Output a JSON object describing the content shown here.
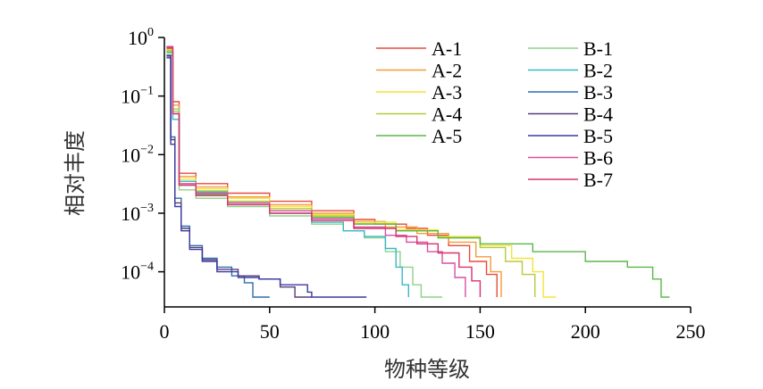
{
  "chart_data": {
    "type": "line",
    "xlabel": "物种等级",
    "ylabel": "相对丰度",
    "xlim": [
      0,
      250
    ],
    "ylim_log10": [
      -4.6,
      0
    ],
    "y_scale": "log",
    "grid": false,
    "legend_position": "top-right",
    "x_ticks": [
      "0",
      "50",
      "100",
      "150",
      "200",
      "250"
    ],
    "y_ticks": [
      {
        "base": "10",
        "exp": "0"
      },
      {
        "base": "10",
        "exp": "−1"
      },
      {
        "base": "10",
        "exp": "−2"
      },
      {
        "base": "10",
        "exp": "−3"
      },
      {
        "base": "10",
        "exp": "−4"
      }
    ],
    "series": [
      {
        "name": "A-1",
        "color": "#e84a3c",
        "end_rank": 158,
        "points": [
          [
            1,
            0.65
          ],
          [
            4,
            0.08
          ],
          [
            7,
            0.0048
          ],
          [
            15,
            0.0032
          ],
          [
            30,
            0.0022
          ],
          [
            50,
            0.0016
          ],
          [
            70,
            0.0011
          ],
          [
            90,
            0.00078
          ],
          [
            100,
            0.00065
          ],
          [
            115,
            0.00055
          ],
          [
            125,
            0.00042
          ],
          [
            135,
            0.00028
          ],
          [
            145,
            0.00015
          ],
          [
            153,
            9e-05
          ],
          [
            158,
            3.7e-05
          ]
        ]
      },
      {
        "name": "A-2",
        "color": "#f39c3a",
        "end_rank": 160,
        "points": [
          [
            1,
            0.6
          ],
          [
            4,
            0.07
          ],
          [
            7,
            0.0042
          ],
          [
            15,
            0.0028
          ],
          [
            30,
            0.0019
          ],
          [
            50,
            0.0014
          ],
          [
            70,
            0.001
          ],
          [
            90,
            0.00072
          ],
          [
            105,
            0.00058
          ],
          [
            120,
            0.00045
          ],
          [
            135,
            0.00032
          ],
          [
            148,
            0.00018
          ],
          [
            155,
            0.0001
          ],
          [
            160,
            3.7e-05
          ]
        ]
      },
      {
        "name": "A-3",
        "color": "#f5e33a",
        "end_rank": 186,
        "points": [
          [
            1,
            0.62
          ],
          [
            4,
            0.06
          ],
          [
            7,
            0.0038
          ],
          [
            15,
            0.0026
          ],
          [
            30,
            0.0018
          ],
          [
            50,
            0.0013
          ],
          [
            70,
            0.00095
          ],
          [
            90,
            0.0007
          ],
          [
            110,
            0.00052
          ],
          [
            130,
            0.0004
          ],
          [
            150,
            0.00028
          ],
          [
            165,
            0.00017
          ],
          [
            175,
            0.0001
          ],
          [
            180,
            3.7e-05
          ],
          [
            186,
            3.7e-05
          ]
        ]
      },
      {
        "name": "A-4",
        "color": "#b5cc3a",
        "end_rank": 176,
        "points": [
          [
            1,
            0.58
          ],
          [
            4,
            0.055
          ],
          [
            7,
            0.0035
          ],
          [
            15,
            0.0024
          ],
          [
            30,
            0.0016
          ],
          [
            50,
            0.0012
          ],
          [
            70,
            0.0009
          ],
          [
            90,
            0.00066
          ],
          [
            110,
            0.0005
          ],
          [
            130,
            0.00038
          ],
          [
            150,
            0.00026
          ],
          [
            162,
            0.00015
          ],
          [
            170,
            9e-05
          ],
          [
            176,
            3.7e-05
          ]
        ]
      },
      {
        "name": "A-5",
        "color": "#5ab84a",
        "end_rank": 240,
        "points": [
          [
            1,
            0.55
          ],
          [
            4,
            0.05
          ],
          [
            7,
            0.003
          ],
          [
            15,
            0.0021
          ],
          [
            30,
            0.0015
          ],
          [
            50,
            0.0011
          ],
          [
            70,
            0.00085
          ],
          [
            90,
            0.00065
          ],
          [
            110,
            0.0005
          ],
          [
            130,
            0.00038
          ],
          [
            150,
            0.0003
          ],
          [
            175,
            0.00022
          ],
          [
            200,
            0.00015
          ],
          [
            220,
            0.00012
          ],
          [
            232,
            7.5e-05
          ],
          [
            236,
            3.7e-05
          ],
          [
            240,
            3.7e-05
          ]
        ]
      },
      {
        "name": "B-1",
        "color": "#8fd18a",
        "end_rank": 132,
        "points": [
          [
            1,
            0.6
          ],
          [
            4,
            0.06
          ],
          [
            7,
            0.0025
          ],
          [
            15,
            0.0018
          ],
          [
            30,
            0.0013
          ],
          [
            50,
            0.0009
          ],
          [
            70,
            0.00065
          ],
          [
            85,
            0.0005
          ],
          [
            95,
            0.00038
          ],
          [
            105,
            0.00022
          ],
          [
            112,
            0.00012
          ],
          [
            118,
            6e-05
          ],
          [
            122,
            3.7e-05
          ],
          [
            132,
            3.7e-05
          ]
        ]
      },
      {
        "name": "B-2",
        "color": "#38b8c8",
        "end_rank": 116,
        "points": [
          [
            1,
            0.5
          ],
          [
            4,
            0.04
          ],
          [
            7,
            0.0035
          ],
          [
            15,
            0.0023
          ],
          [
            30,
            0.0015
          ],
          [
            50,
            0.001
          ],
          [
            70,
            0.0007
          ],
          [
            85,
            0.0005
          ],
          [
            95,
            0.0004
          ],
          [
            105,
            0.00025
          ],
          [
            110,
            0.00012
          ],
          [
            113,
            6e-05
          ],
          [
            116,
            3.7e-05
          ]
        ]
      },
      {
        "name": "B-3",
        "color": "#2f6fae",
        "end_rank": 50,
        "points": [
          [
            1,
            0.5
          ],
          [
            3,
            0.02
          ],
          [
            5,
            0.0018
          ],
          [
            8,
            0.0006
          ],
          [
            12,
            0.00028
          ],
          [
            18,
            0.00017
          ],
          [
            25,
            0.00012
          ],
          [
            32,
            8.5e-05
          ],
          [
            38,
            6.5e-05
          ],
          [
            42,
            3.7e-05
          ],
          [
            50,
            3.7e-05
          ]
        ]
      },
      {
        "name": "B-4",
        "color": "#5a3c7a",
        "end_rank": 70,
        "points": [
          [
            1,
            0.48
          ],
          [
            3,
            0.018
          ],
          [
            5,
            0.0015
          ],
          [
            8,
            0.00055
          ],
          [
            12,
            0.00026
          ],
          [
            18,
            0.00016
          ],
          [
            25,
            0.00011
          ],
          [
            35,
            8.5e-05
          ],
          [
            45,
            7.5e-05
          ],
          [
            55,
            5.5e-05
          ],
          [
            62,
            3.7e-05
          ],
          [
            70,
            3.7e-05
          ]
        ]
      },
      {
        "name": "B-5",
        "color": "#3a3aa0",
        "end_rank": 96,
        "points": [
          [
            1,
            0.45
          ],
          [
            3,
            0.015
          ],
          [
            5,
            0.0013
          ],
          [
            8,
            0.0005
          ],
          [
            12,
            0.00024
          ],
          [
            18,
            0.00015
          ],
          [
            25,
            0.0001
          ],
          [
            35,
            8e-05
          ],
          [
            45,
            7.5e-05
          ],
          [
            55,
            6e-05
          ],
          [
            62,
            6e-05
          ],
          [
            68,
            4.5e-05
          ],
          [
            70,
            3.7e-05
          ],
          [
            96,
            3.7e-05
          ]
        ]
      },
      {
        "name": "B-6",
        "color": "#d94fa0",
        "end_rank": 143,
        "points": [
          [
            1,
            0.7
          ],
          [
            4,
            0.05
          ],
          [
            7,
            0.0032
          ],
          [
            15,
            0.0022
          ],
          [
            30,
            0.0015
          ],
          [
            50,
            0.0011
          ],
          [
            70,
            0.0008
          ],
          [
            90,
            0.00058
          ],
          [
            105,
            0.00042
          ],
          [
            115,
            0.00032
          ],
          [
            125,
            0.00022
          ],
          [
            132,
            0.00014
          ],
          [
            138,
            8e-05
          ],
          [
            143,
            3.7e-05
          ]
        ]
      },
      {
        "name": "B-7",
        "color": "#d6356e",
        "end_rank": 150,
        "points": [
          [
            1,
            0.68
          ],
          [
            4,
            0.05
          ],
          [
            7,
            0.003
          ],
          [
            15,
            0.002
          ],
          [
            30,
            0.0014
          ],
          [
            50,
            0.001
          ],
          [
            70,
            0.00075
          ],
          [
            90,
            0.00055
          ],
          [
            110,
            0.0004
          ],
          [
            120,
            0.0003
          ],
          [
            130,
            0.00021
          ],
          [
            140,
            0.00012
          ],
          [
            146,
            7e-05
          ],
          [
            150,
            3.7e-05
          ]
        ]
      }
    ]
  }
}
